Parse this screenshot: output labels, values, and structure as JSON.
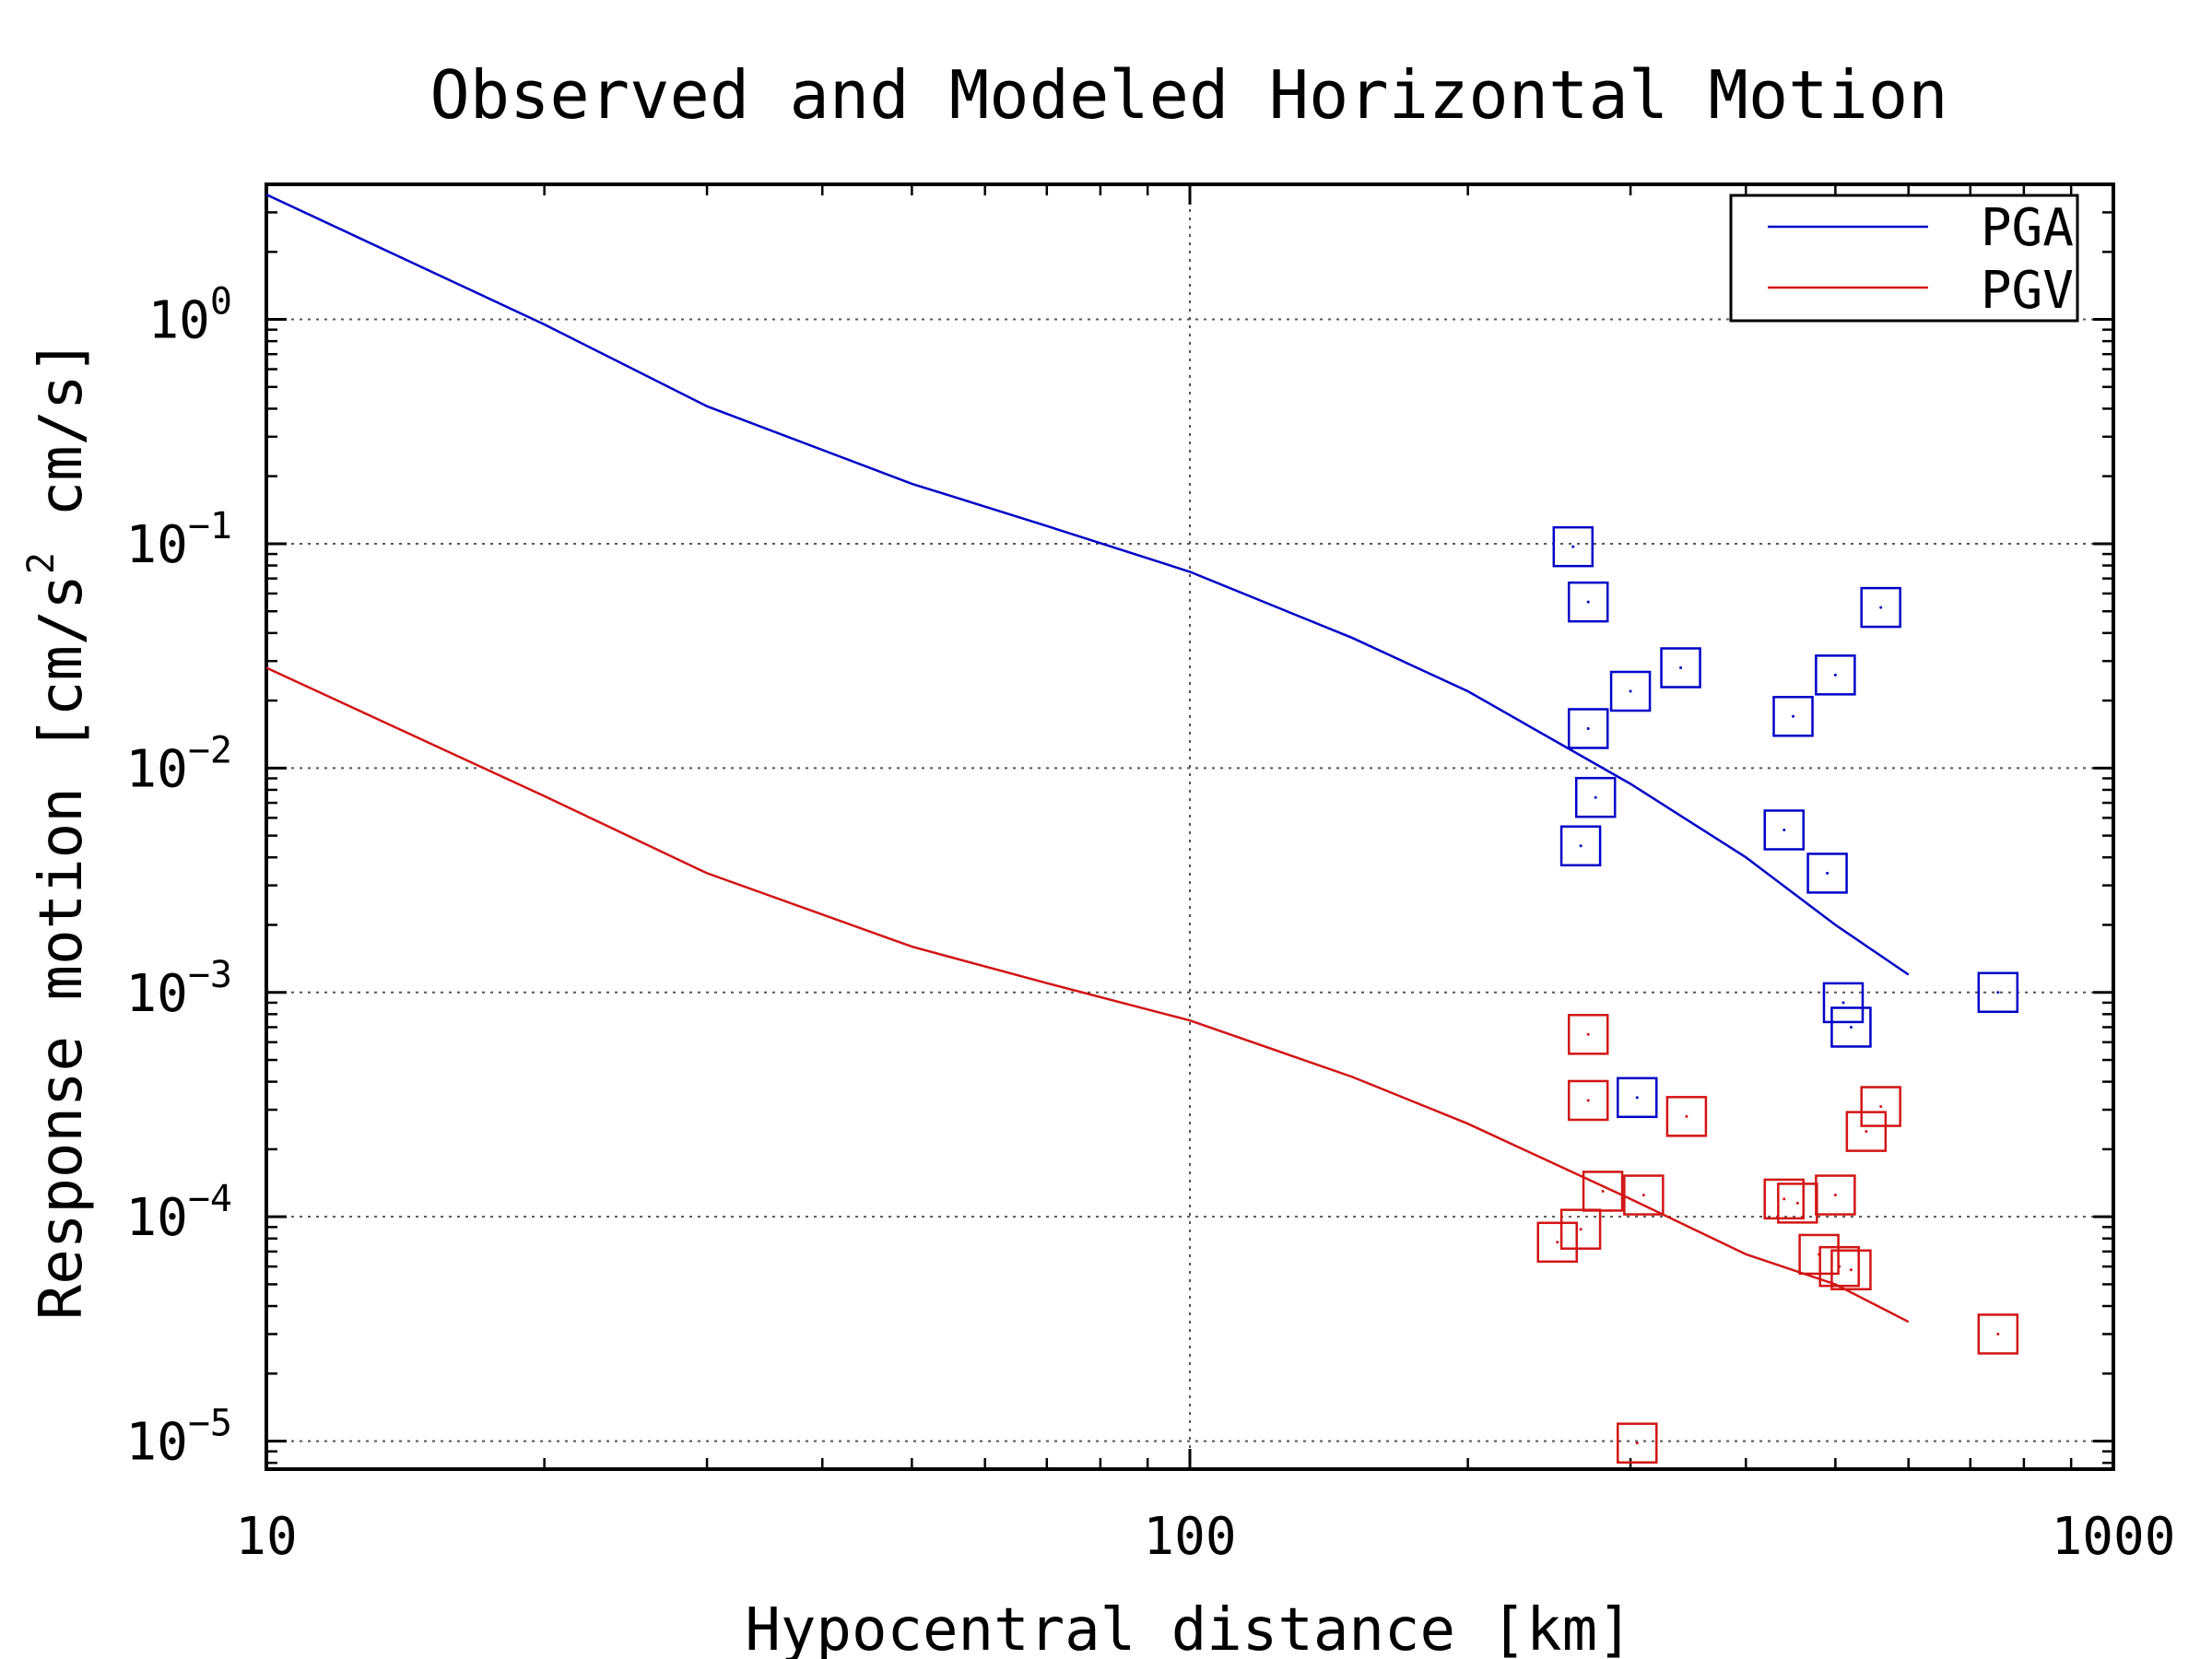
{
  "chart_data": {
    "type": "scatter",
    "title": "Observed and Modeled Horizontal Motion",
    "xlabel": "Hypocentral distance [km]",
    "ylabel": "Response motion [cm/s² cm/s]",
    "ylabel_parts": {
      "pre": "Response motion [cm/s",
      "sup": "2",
      "post": "  cm/s]"
    },
    "x_scale": "log",
    "y_scale": "log",
    "xlim": [
      10,
      1000
    ],
    "ylim": [
      7.5e-06,
      4
    ],
    "x_ticks": [
      {
        "value": 10,
        "label": "10"
      },
      {
        "value": 100,
        "label": "100"
      },
      {
        "value": 1000,
        "label": "1000"
      }
    ],
    "y_ticks": [
      {
        "value": 1,
        "base": "10",
        "exp": "0"
      },
      {
        "value": 0.1,
        "base": "10",
        "exp": "−1"
      },
      {
        "value": 0.01,
        "base": "10",
        "exp": "−2"
      },
      {
        "value": 0.001,
        "base": "10",
        "exp": "−3"
      },
      {
        "value": 0.0001,
        "base": "10",
        "exp": "−4"
      },
      {
        "value": 1e-05,
        "base": "10",
        "exp": "−5"
      }
    ],
    "grid": true,
    "legend_position": "top-right",
    "series": [
      {
        "name": "PGA",
        "color": "#0000c8",
        "model": {
          "x": [
            10,
            20,
            30,
            50,
            70,
            100,
            150,
            200,
            300,
            400,
            500,
            600
          ],
          "y": [
            3.6,
            0.95,
            0.41,
            0.185,
            0.12,
            0.075,
            0.038,
            0.022,
            0.0085,
            0.004,
            0.002,
            0.0012
          ]
        },
        "observed": {
          "x": [
            260,
            265,
            270,
            275,
            300,
            340,
            440,
            450,
            490,
            500,
            510,
            520,
            560,
            270,
            305,
            750
          ],
          "y": [
            0.097,
            0.0045,
            0.055,
            0.0074,
            0.022,
            0.028,
            0.0053,
            0.017,
            0.0034,
            0.026,
            0.0009,
            0.0007,
            0.052,
            0.015,
            0.00034,
            0.001
          ]
        }
      },
      {
        "name": "PGV",
        "color": "#d21414",
        "model": {
          "x": [
            10,
            20,
            30,
            50,
            70,
            100,
            150,
            200,
            300,
            400,
            500,
            600
          ],
          "y": [
            0.028,
            0.0075,
            0.0034,
            0.0016,
            0.0011,
            0.00075,
            0.00042,
            0.00026,
            0.00012,
            6.8e-05,
            5e-05,
            3.4e-05
          ]
        },
        "observed": {
          "x": [
            250,
            265,
            270,
            270,
            280,
            310,
            345,
            440,
            455,
            480,
            500,
            505,
            520,
            540,
            560,
            305,
            750
          ],
          "y": [
            7.7e-05,
            8.8e-05,
            0.00065,
            0.00033,
            0.00013,
            0.000125,
            0.00028,
            0.00012,
            0.000115,
            6.8e-05,
            0.000125,
            6e-05,
            5.8e-05,
            0.00024,
            0.00031,
            9.8e-06,
            3e-05
          ]
        }
      }
    ]
  }
}
